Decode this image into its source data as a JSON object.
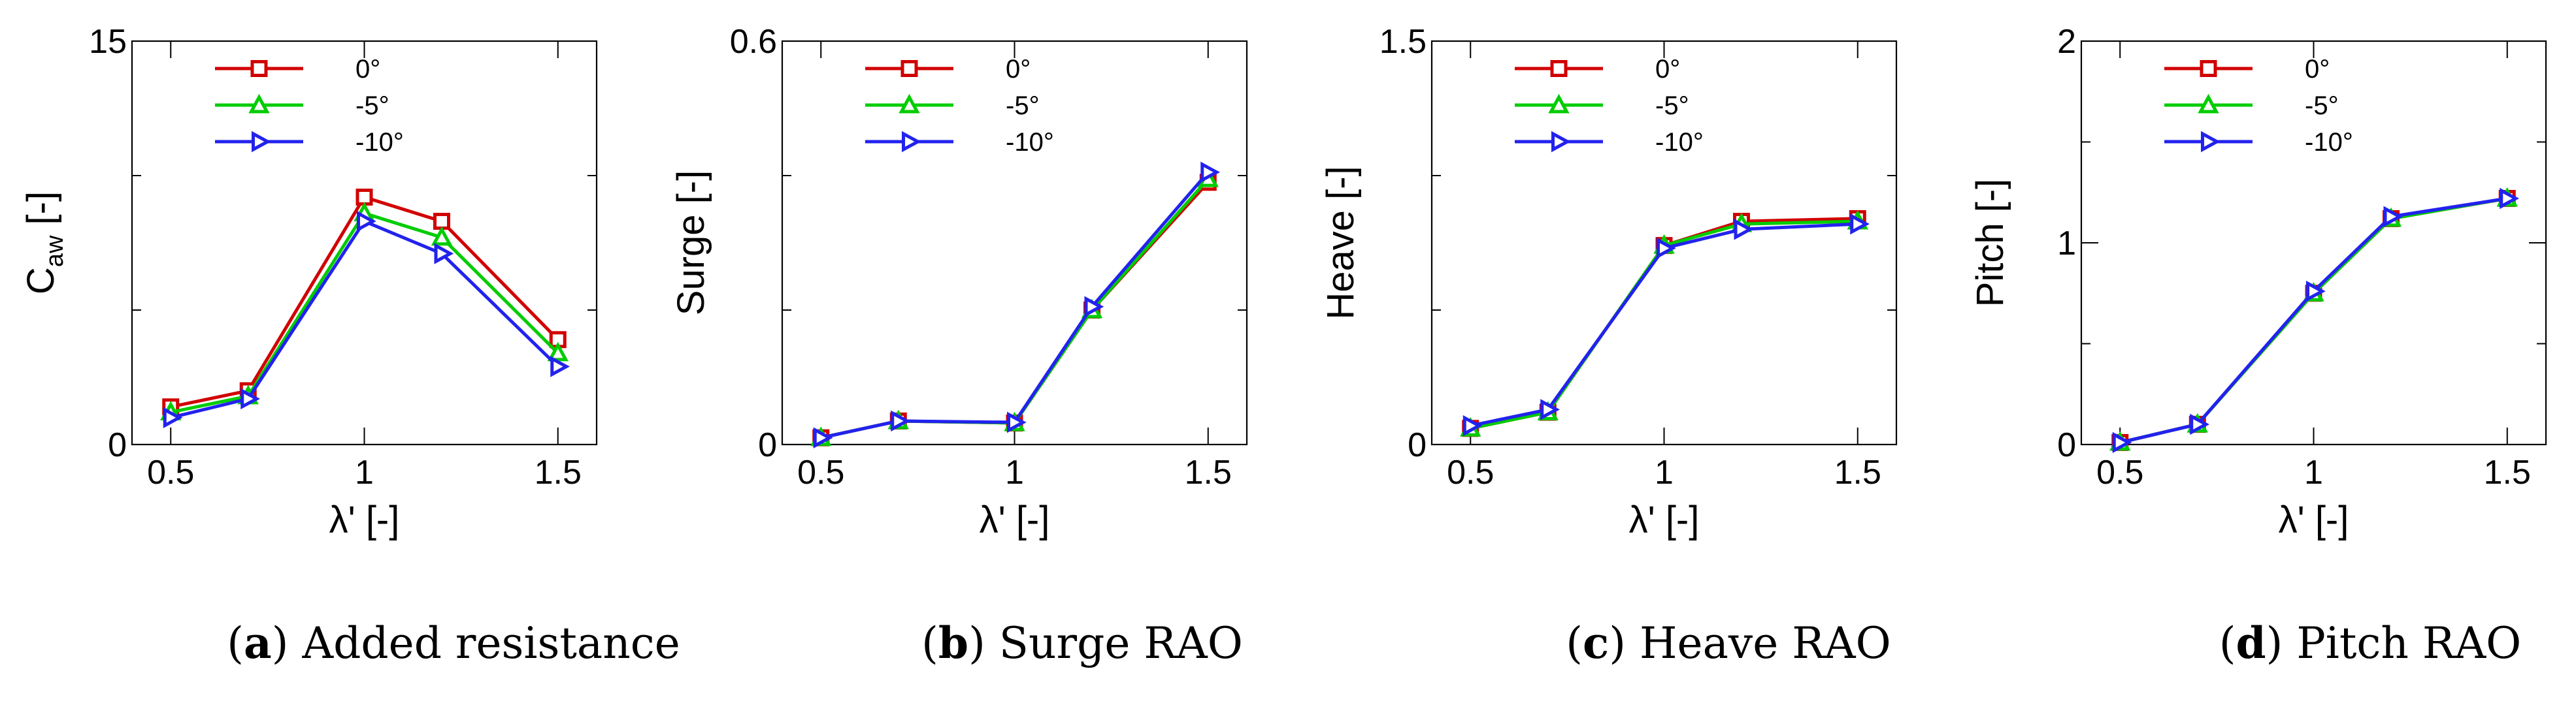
{
  "legend": {
    "series": [
      {
        "name": "0°",
        "color": "#d10000",
        "marker": "square"
      },
      {
        "name": "-5°",
        "color": "#00cc00",
        "marker": "triangle"
      },
      {
        "name": "-10°",
        "color": "#2222ee",
        "marker": "triangle-right"
      }
    ]
  },
  "chart_data": [
    {
      "type": "line",
      "panel_letter": "a",
      "caption": "Added resistance",
      "xlabel": "λ' [-]",
      "ylabel": "C",
      "ylabel_sub": "aw",
      "ylabel_suffix": " [-]",
      "xlim": [
        0.4,
        1.6
      ],
      "ylim": [
        0,
        15
      ],
      "xticks": [
        0.5,
        1,
        1.5
      ],
      "xtick_labels": [
        "0.5",
        "1",
        "1.5"
      ],
      "yticks": [
        0,
        15
      ],
      "ytick_labels": [
        "0",
        "15"
      ],
      "yminor": [
        5,
        10
      ],
      "x": [
        0.5,
        0.7,
        1.0,
        1.2,
        1.5
      ],
      "series": [
        {
          "name": "0°",
          "values": [
            1.4,
            2.0,
            9.2,
            8.3,
            3.9
          ]
        },
        {
          "name": "-5°",
          "values": [
            1.2,
            1.8,
            8.6,
            7.7,
            3.4
          ]
        },
        {
          "name": "-10°",
          "values": [
            1.0,
            1.7,
            8.3,
            7.1,
            2.9
          ]
        }
      ]
    },
    {
      "type": "line",
      "panel_letter": "b",
      "caption": "Surge RAO",
      "xlabel": "λ' [-]",
      "ylabel": "Surge [-]",
      "ylabel_sub": "",
      "ylabel_suffix": "",
      "xlim": [
        0.4,
        1.6
      ],
      "ylim": [
        0,
        0.6
      ],
      "xticks": [
        0.5,
        1,
        1.5
      ],
      "xtick_labels": [
        "0.5",
        "1",
        "1.5"
      ],
      "yticks": [
        0,
        0.6
      ],
      "ytick_labels": [
        "0",
        "0.6"
      ],
      "yminor": [
        0.2,
        0.4
      ],
      "x": [
        0.5,
        0.7,
        1.0,
        1.2,
        1.5
      ],
      "series": [
        {
          "name": "0°",
          "values": [
            0.01,
            0.035,
            0.032,
            0.2,
            0.39
          ]
        },
        {
          "name": "-5°",
          "values": [
            0.01,
            0.035,
            0.032,
            0.2,
            0.395
          ]
        },
        {
          "name": "-10°",
          "values": [
            0.01,
            0.035,
            0.033,
            0.205,
            0.405
          ]
        }
      ]
    },
    {
      "type": "line",
      "panel_letter": "c",
      "caption": "Heave RAO",
      "xlabel": "λ' [-]",
      "ylabel": "Heave [-]",
      "ylabel_sub": "",
      "ylabel_suffix": "",
      "xlim": [
        0.4,
        1.6
      ],
      "ylim": [
        0,
        1.5
      ],
      "xticks": [
        0.5,
        1,
        1.5
      ],
      "xtick_labels": [
        "0.5",
        "1",
        "1.5"
      ],
      "yticks": [
        0,
        1.5
      ],
      "ytick_labels": [
        "0",
        "1.5"
      ],
      "yminor": [
        0.5,
        1.0
      ],
      "x": [
        0.5,
        0.7,
        1.0,
        1.2,
        1.5
      ],
      "series": [
        {
          "name": "0°",
          "values": [
            0.06,
            0.12,
            0.74,
            0.83,
            0.84
          ]
        },
        {
          "name": "-5°",
          "values": [
            0.06,
            0.12,
            0.74,
            0.82,
            0.83
          ]
        },
        {
          "name": "-10°",
          "values": [
            0.07,
            0.13,
            0.73,
            0.8,
            0.82
          ]
        }
      ]
    },
    {
      "type": "line",
      "panel_letter": "d",
      "caption": "Pitch RAO",
      "xlabel": "λ' [-]",
      "ylabel": "Pitch [-]",
      "ylabel_sub": "",
      "ylabel_suffix": "",
      "xlim": [
        0.4,
        1.6
      ],
      "ylim": [
        0,
        2
      ],
      "xticks": [
        0.5,
        1,
        1.5
      ],
      "xtick_labels": [
        "0.5",
        "1",
        "1.5"
      ],
      "yticks": [
        0,
        1,
        2
      ],
      "ytick_labels": [
        "0",
        "1",
        "2"
      ],
      "yminor": [
        0.5,
        1.5
      ],
      "x": [
        0.5,
        0.7,
        1.0,
        1.2,
        1.5
      ],
      "series": [
        {
          "name": "0°",
          "values": [
            0.01,
            0.1,
            0.75,
            1.12,
            1.22
          ]
        },
        {
          "name": "-5°",
          "values": [
            0.01,
            0.1,
            0.75,
            1.12,
            1.22
          ]
        },
        {
          "name": "-10°",
          "values": [
            0.01,
            0.1,
            0.76,
            1.13,
            1.22
          ]
        }
      ]
    }
  ]
}
